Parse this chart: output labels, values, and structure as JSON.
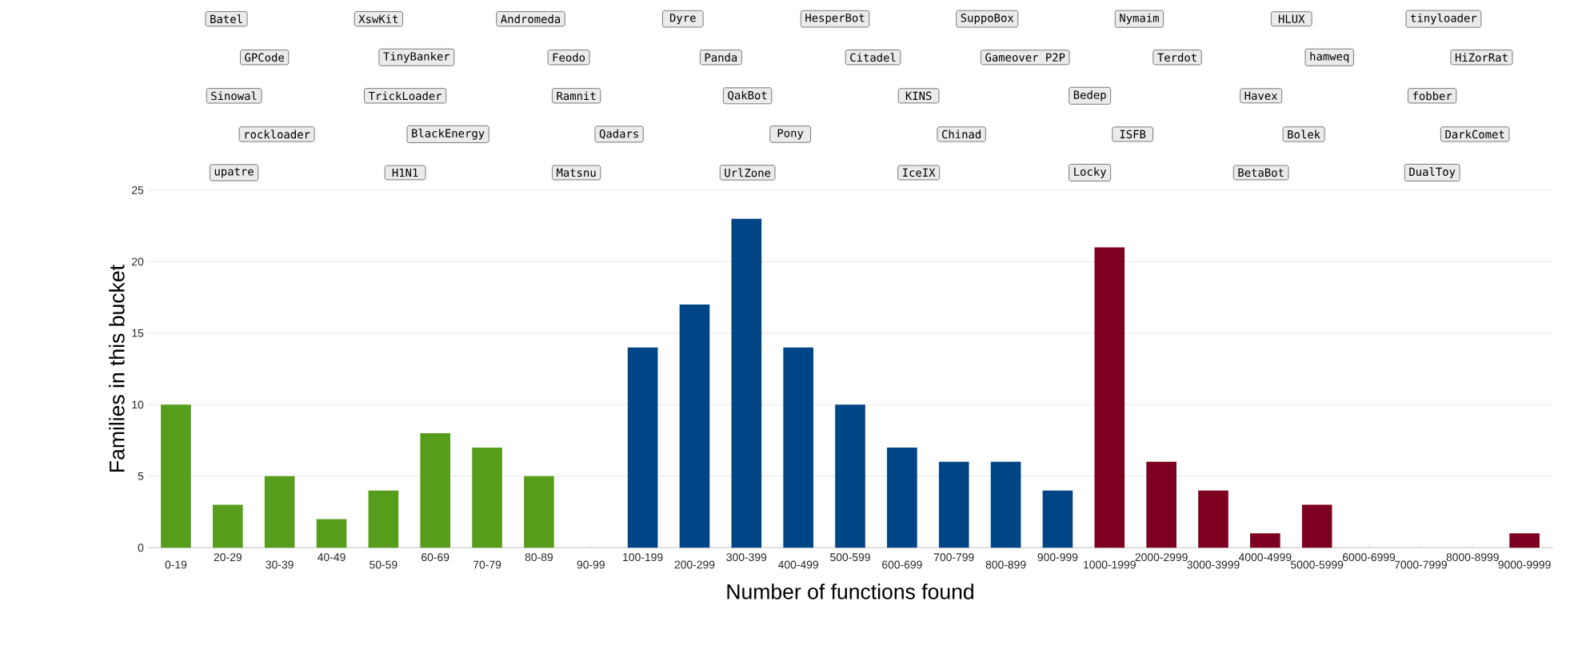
{
  "chart_data": {
    "type": "bar",
    "xlabel": "Number of functions found",
    "ylabel": "Families in this bucket",
    "categories": [
      "0-19",
      "20-29",
      "30-39",
      "40-49",
      "50-59",
      "60-69",
      "70-79",
      "80-89",
      "90-99",
      "100-199",
      "200-299",
      "300-399",
      "400-499",
      "500-599",
      "600-699",
      "700-799",
      "800-899",
      "900-999",
      "1000-1999",
      "2000-2999",
      "3000-3999",
      "4000-4999",
      "5000-5999",
      "6000-6999",
      "7000-7999",
      "8000-8999",
      "9000-9999"
    ],
    "values": [
      10,
      3,
      5,
      2,
      4,
      8,
      7,
      5,
      0,
      14,
      17,
      23,
      14,
      10,
      7,
      6,
      6,
      4,
      21,
      6,
      4,
      1,
      3,
      0,
      0,
      0,
      1
    ],
    "colors": [
      "#579d1c",
      "#579d1c",
      "#579d1c",
      "#579d1c",
      "#579d1c",
      "#579d1c",
      "#579d1c",
      "#579d1c",
      "#579d1c",
      "#004586",
      "#004586",
      "#004586",
      "#004586",
      "#004586",
      "#004586",
      "#004586",
      "#004586",
      "#004586",
      "#7e0021",
      "#7e0021",
      "#7e0021",
      "#7e0021",
      "#7e0021",
      "#7e0021",
      "#7e0021",
      "#7e0021",
      "#7e0021"
    ],
    "ylim": [
      0,
      25
    ],
    "yticks": [
      0,
      5,
      10,
      15,
      20,
      25
    ],
    "grid": "y",
    "annotations": [
      "Batel",
      "XswKit",
      "Andromeda",
      "Dyre",
      "HesperBot",
      "SuppoBox",
      "Nymaim",
      "HLUX",
      "tinyloader",
      "GPCode",
      "TinyBanker",
      "Feodo",
      "Panda",
      "Citadel",
      "Gameover P2P",
      "Terdot",
      "hamweq",
      "HiZorRat",
      "Sinowal",
      "TrickLoader",
      "Ramnit",
      "QakBot",
      "KINS",
      "Bedep",
      "Havex",
      "fobber",
      "rockloader",
      "BlackEnergy",
      "Qadars",
      "Pony",
      "Chinad",
      "ISFB",
      "Bolek",
      "DarkComet",
      "upatre",
      "H1N1",
      "Matsnu",
      "UrlZone",
      "IceIX",
      "Locky",
      "BetaBot",
      "DualToy"
    ]
  }
}
